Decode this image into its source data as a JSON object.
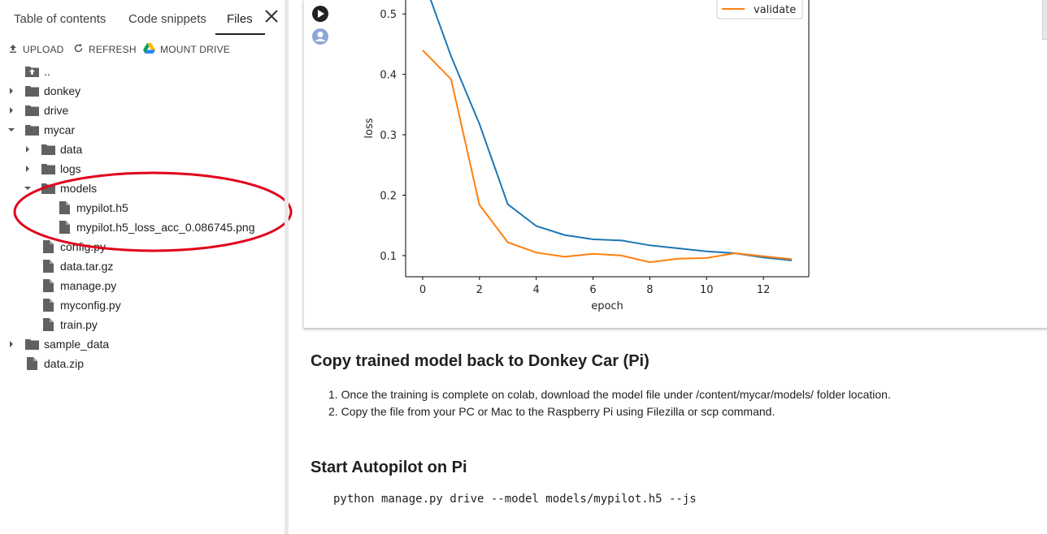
{
  "sidebar": {
    "tabs": [
      "Table of contents",
      "Code snippets",
      "Files"
    ],
    "toolbar": {
      "upload": "UPLOAD",
      "refresh": "REFRESH",
      "mount": "MOUNT DRIVE"
    },
    "tree": [
      {
        "label": "..",
        "icon": "folder-up-icon"
      },
      {
        "label": "donkey",
        "icon": "folder-icon"
      },
      {
        "label": "drive",
        "icon": "folder-icon"
      },
      {
        "label": "mycar",
        "icon": "folder-icon"
      },
      {
        "label": "data",
        "icon": "folder-icon"
      },
      {
        "label": "logs",
        "icon": "folder-icon"
      },
      {
        "label": "models",
        "icon": "folder-icon"
      },
      {
        "label": "mypilot.h5",
        "icon": "file-icon"
      },
      {
        "label": "mypilot.h5_loss_acc_0.086745.png",
        "icon": "file-icon"
      },
      {
        "label": "config.py",
        "icon": "file-icon"
      },
      {
        "label": "data.tar.gz",
        "icon": "file-icon"
      },
      {
        "label": "manage.py",
        "icon": "file-icon"
      },
      {
        "label": "myconfig.py",
        "icon": "file-icon"
      },
      {
        "label": "train.py",
        "icon": "file-icon"
      },
      {
        "label": "sample_data",
        "icon": "folder-icon"
      },
      {
        "label": "data.zip",
        "icon": "file-icon"
      }
    ],
    "annotation_color": "#e0001b"
  },
  "chart_data": {
    "type": "line",
    "xlabel": "epoch",
    "ylabel": "loss",
    "xlim": [
      -0.6,
      13.6
    ],
    "ylim": [
      0.065,
      0.55
    ],
    "x_ticks": [
      0,
      2,
      4,
      6,
      8,
      10,
      12
    ],
    "y_ticks": [
      0.1,
      0.2,
      0.3,
      0.4,
      0.5
    ],
    "legend_visible": "validate",
    "legend_position": "top-right",
    "series": [
      {
        "name": "",
        "color": "#1f77b4",
        "x": [
          0,
          1,
          2,
          3,
          4,
          5,
          6,
          7,
          8,
          9,
          10,
          11,
          12,
          13
        ],
        "y": [
          0.56,
          0.43,
          0.318,
          0.185,
          0.149,
          0.134,
          0.127,
          0.125,
          0.117,
          0.112,
          0.107,
          0.104,
          0.097,
          0.092
        ]
      },
      {
        "name": "validate",
        "color": "#ff7f0e",
        "x": [
          0,
          1,
          2,
          3,
          4,
          5,
          6,
          7,
          8,
          9,
          10,
          11,
          12,
          13
        ],
        "y": [
          0.44,
          0.392,
          0.184,
          0.122,
          0.105,
          0.098,
          0.103,
          0.1,
          0.089,
          0.095,
          0.096,
          0.104,
          0.099,
          0.094
        ]
      }
    ]
  },
  "content": {
    "section1_title": "Copy trained model back to Donkey Car (Pi)",
    "steps": [
      "Once the training is complete on colab, download the model file under /content/mycar/models/ folder location.",
      "Copy the file from your PC or Mac to the Raspberry Pi using Filezilla or scp command."
    ],
    "section2_title": "Start Autopilot on Pi",
    "code": "python manage.py drive --model models/mypilot.h5 --js"
  }
}
